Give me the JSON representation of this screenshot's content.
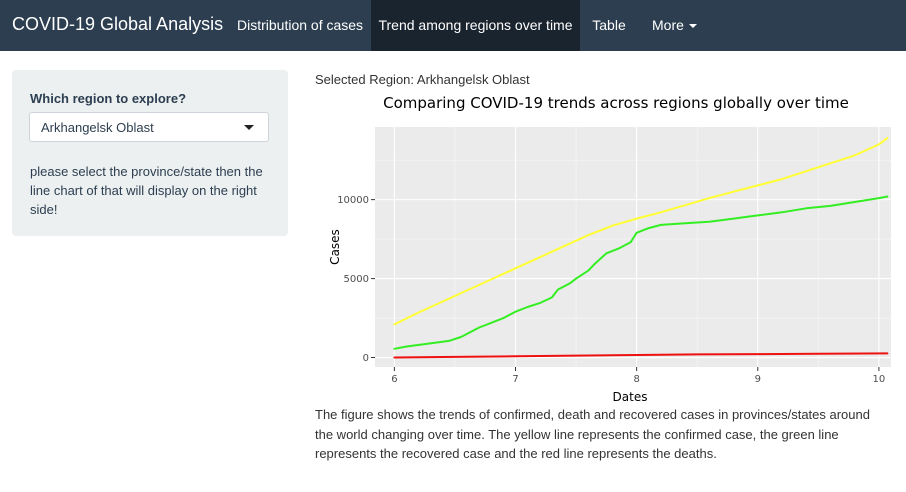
{
  "navbar": {
    "brand": "COVID-19 Global Analysis",
    "tabs": [
      {
        "label": "Distribution of cases",
        "active": false
      },
      {
        "label": "Trend among regions over time",
        "active": true
      },
      {
        "label": "Table",
        "active": false
      },
      {
        "label": "More",
        "active": false,
        "dropdown": true
      }
    ],
    "colors": {
      "background": "#2c3e50",
      "active": "#1a242f"
    }
  },
  "sidebar": {
    "question": "Which region to explore?",
    "select_value": "Arkhangelsk Oblast",
    "help_text": "please select the province/state then the line chart of that will display on the right side!"
  },
  "main": {
    "selected_region": "Selected Region: Arkhangelsk Oblast",
    "description": "The figure shows the trends of confirmed, death and recovered cases in provinces/states around the world changing over time. The yellow line represents the confirmed case, the green line represents the recovered case and the red line represents the deaths."
  },
  "chart_data": {
    "type": "line",
    "title": "Comparing COVID-19 trends across regions globally over time",
    "xlabel": "Dates",
    "ylabel": "Cases",
    "xlim": [
      5.84,
      10.1
    ],
    "ylim": [
      -600,
      14600
    ],
    "x_ticks": [
      6,
      7,
      8,
      9,
      10
    ],
    "y_ticks": [
      0,
      5000,
      10000
    ],
    "grid": true,
    "legend": "none",
    "series": [
      {
        "color": "#ffff33",
        "x": [
          6.0,
          6.2,
          6.4,
          6.6,
          6.8,
          7.0,
          7.2,
          7.4,
          7.6,
          7.8,
          8.0,
          8.2,
          8.4,
          8.6,
          8.8,
          9.0,
          9.2,
          9.4,
          9.6,
          9.8,
          10.0,
          10.07
        ],
        "y": [
          2100,
          2850,
          3550,
          4250,
          4950,
          5650,
          6350,
          7050,
          7750,
          8350,
          8800,
          9200,
          9650,
          10100,
          10500,
          10900,
          11300,
          11800,
          12300,
          12800,
          13500,
          13900
        ]
      },
      {
        "color": "#33ee22",
        "x": [
          6.0,
          6.1,
          6.25,
          6.45,
          6.55,
          6.7,
          6.8,
          6.9,
          7.0,
          7.1,
          7.2,
          7.3,
          7.35,
          7.45,
          7.5,
          7.6,
          7.65,
          7.75,
          7.85,
          7.95,
          8.0,
          8.1,
          8.2,
          8.4,
          8.6,
          8.8,
          9.0,
          9.2,
          9.4,
          9.6,
          9.8,
          10.0,
          10.07
        ],
        "y": [
          550,
          700,
          850,
          1050,
          1300,
          1900,
          2200,
          2500,
          2900,
          3200,
          3450,
          3800,
          4300,
          4700,
          5000,
          5500,
          5900,
          6600,
          6900,
          7300,
          7900,
          8200,
          8400,
          8500,
          8600,
          8800,
          9000,
          9200,
          9450,
          9600,
          9850,
          10100,
          10200
        ]
      },
      {
        "color": "#ee1111",
        "x": [
          6.0,
          6.5,
          7.0,
          7.5,
          8.0,
          8.5,
          9.0,
          9.5,
          10.07
        ],
        "y": [
          0,
          40,
          80,
          120,
          160,
          200,
          220,
          240,
          260
        ]
      }
    ]
  }
}
